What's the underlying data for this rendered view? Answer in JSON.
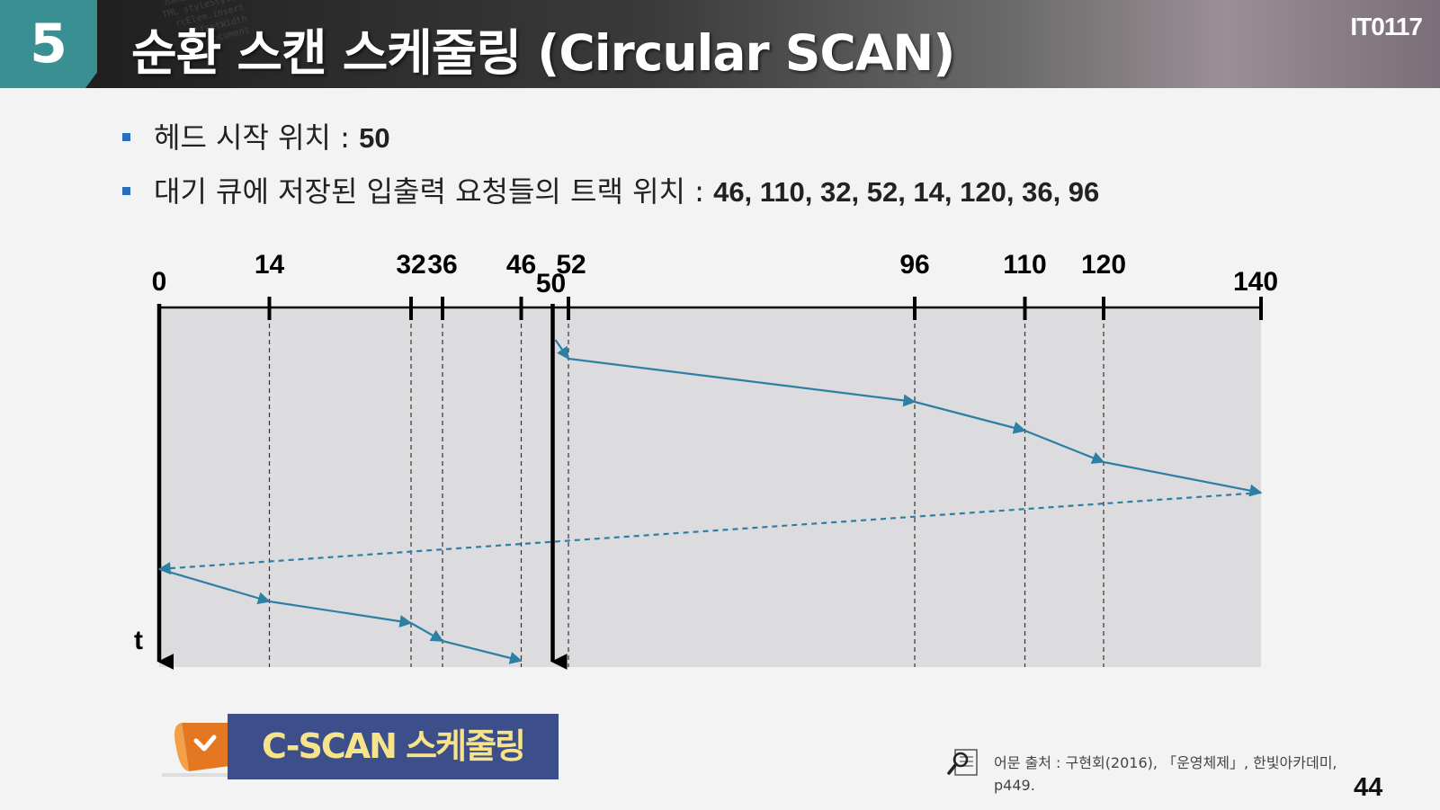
{
  "header": {
    "section_number": "5",
    "title": "순환 스캔 스케줄링 (Circular SCAN)",
    "course_code": "IT0117"
  },
  "bullets": [
    {
      "label": "헤드 시작 위치 : ",
      "value": "50"
    },
    {
      "label": "대기 큐에 저장된 입출력 요청들의 트랙 위치 : ",
      "value": "46, 110, 32, 52, 14, 120, 36, 96"
    }
  ],
  "chart_data": {
    "type": "diagram",
    "track_min": 0,
    "track_max": 140,
    "head_start": 50,
    "track_labels": [
      "0",
      "14",
      "32",
      "36",
      "46",
      "50",
      "52",
      "96",
      "110",
      "120",
      "140"
    ],
    "requests": [
      14,
      32,
      36,
      46,
      52,
      96,
      110,
      120
    ],
    "service_order": [
      50,
      52,
      96,
      110,
      120,
      140,
      0,
      14,
      32,
      36,
      46
    ],
    "return_sweep": {
      "from": 140,
      "to": 0,
      "style": "dashed"
    },
    "time_axis_label": "t",
    "colors": {
      "path": "#2d7fa3",
      "background": "#dcdcdf",
      "axis": "#000000"
    }
  },
  "footer": {
    "badge_label": "C-SCAN 스케줄링",
    "source_text": "어문 출처 : 구현회(2016), 「운영체제」, 한빛아카데미, p449.",
    "page_number": "44"
  }
}
